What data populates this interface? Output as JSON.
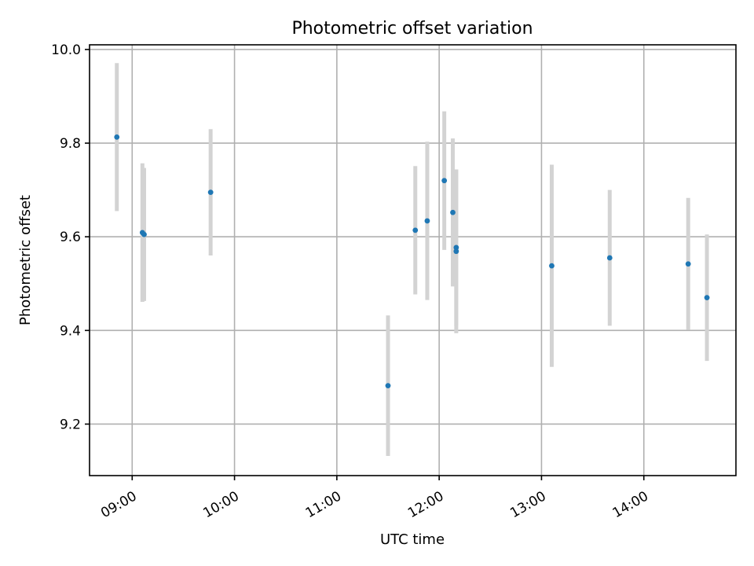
{
  "chart_data": {
    "type": "scatter",
    "title": "Photometric offset variation",
    "xlabel": "UTC time",
    "ylabel": "Photometric offset",
    "x_type": "time",
    "xlim": [
      "08:35",
      "14:54"
    ],
    "ylim": [
      9.09,
      10.01
    ],
    "x_ticks": [
      "09:00",
      "10:00",
      "11:00",
      "12:00",
      "13:00",
      "14:00"
    ],
    "y_ticks": [
      9.2,
      9.4,
      9.6,
      9.8,
      10.0
    ],
    "y_tick_labels": [
      "9.2",
      "9.4",
      "9.6",
      "9.8",
      "10.0"
    ],
    "grid": true,
    "marker_color": "#1f77b4",
    "errorbar_color": "#d3d3d3",
    "points": [
      {
        "t": "08:51",
        "y": 9.813,
        "err": 0.158
      },
      {
        "t": "09:06",
        "y": 9.609,
        "err": 0.148
      },
      {
        "t": "09:07",
        "y": 9.605,
        "err": 0.142
      },
      {
        "t": "09:46",
        "y": 9.695,
        "err": 0.135
      },
      {
        "t": "11:30",
        "y": 9.282,
        "err": 0.15
      },
      {
        "t": "11:46",
        "y": 9.614,
        "err": 0.137
      },
      {
        "t": "11:53",
        "y": 9.634,
        "err": 0.169
      },
      {
        "t": "12:03",
        "y": 9.72,
        "err": 0.148
      },
      {
        "t": "12:08",
        "y": 9.652,
        "err": 0.158
      },
      {
        "t": "12:10",
        "y": 9.577,
        "err": 0.167
      },
      {
        "t": "12:10",
        "y": 9.569,
        "err": 0.175
      },
      {
        "t": "13:06",
        "y": 9.538,
        "err": 0.216
      },
      {
        "t": "13:40",
        "y": 9.555,
        "err": 0.145
      },
      {
        "t": "14:26",
        "y": 9.542,
        "err": 0.141
      },
      {
        "t": "14:37",
        "y": 9.47,
        "err": 0.135
      }
    ]
  }
}
